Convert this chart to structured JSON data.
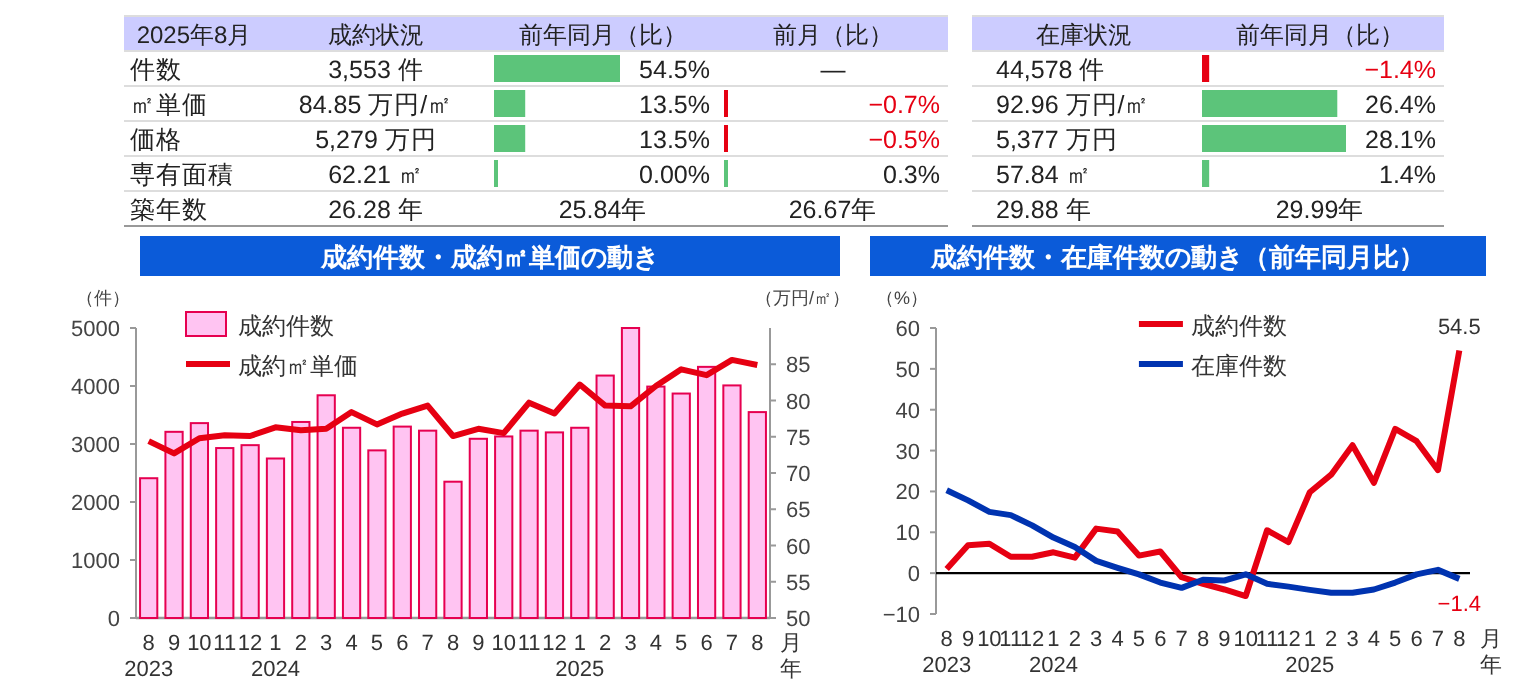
{
  "chart_data": [
    {
      "type": "other",
      "title": "2025年8月",
      "categories": [
        "件数",
        "㎡単価",
        "価格",
        "専有面積",
        "築年数"
      ],
      "series": [
        {
          "name": "成約状況",
          "values": [
            null,
            null,
            null,
            null,
            null
          ],
          "value_labels": [
            "3,553 件",
            "84.85 万円/㎡",
            "5,279 万円",
            "62.21 ㎡",
            "26.28 年"
          ]
        },
        {
          "name": "前年同月（比）",
          "values": [
            54.5,
            13.5,
            13.5,
            0.0,
            null
          ],
          "value_labels": [
            "54.5%",
            "13.5%",
            "13.5%",
            "0.00%",
            "25.84年"
          ]
        },
        {
          "name": "前月（比）",
          "values": [
            null,
            -0.7,
            -0.5,
            0.3,
            null
          ],
          "value_labels": [
            "—",
            "−0.7%",
            "−0.5%",
            "0.3%",
            "26.67年"
          ]
        }
      ]
    },
    {
      "type": "other",
      "title": "在庫状況",
      "categories": [
        "44,578 件",
        "92.96 万円/㎡",
        "5,377 万円",
        "57.84 ㎡",
        "29.88 年"
      ],
      "series": [
        {
          "name": "前年同月（比）",
          "values": [
            -1.4,
            26.4,
            28.1,
            1.4,
            null
          ],
          "value_labels": [
            "−1.4%",
            "26.4%",
            "28.1%",
            "1.4%",
            "29.99年"
          ]
        }
      ]
    },
    {
      "type": "bar",
      "title": "成約件数・成約㎡単価の動き",
      "ylabel": "（件）",
      "y2label": "（万円/㎡）",
      "xlabel": "月年",
      "categories": [
        "8\n2023",
        "9",
        "10",
        "11",
        "12",
        "1\n2024",
        "2",
        "3",
        "4",
        "5",
        "6",
        "7",
        "8",
        "9",
        "10",
        "11",
        "12",
        "1\n2025",
        "2",
        "3",
        "4",
        "5",
        "6",
        "7",
        "8"
      ],
      "ylim": [
        0,
        5000
      ],
      "yticks": [
        0,
        1000,
        2000,
        3000,
        4000,
        5000
      ],
      "y2lim": [
        50,
        90
      ],
      "y2ticks": [
        50,
        55,
        60,
        65,
        70,
        75,
        80,
        85
      ],
      "grid": false,
      "legend": "top left",
      "series": [
        {
          "name": "成約件数",
          "type": "bar",
          "color": "#ffc4f2",
          "values": [
            2410,
            3210,
            3360,
            2930,
            2980,
            2750,
            3380,
            3840,
            3280,
            2890,
            3300,
            3230,
            2350,
            3090,
            3130,
            3230,
            3200,
            3280,
            4180,
            5000,
            3990,
            3870,
            4330,
            4010,
            3550
          ]
        },
        {
          "name": "成約㎡単価",
          "type": "line",
          "axis": "y2",
          "color": "#e60012",
          "values": [
            74.4,
            72.7,
            74.8,
            75.2,
            75.1,
            76.3,
            75.9,
            76.1,
            78.4,
            76.7,
            78.2,
            79.3,
            75.1,
            76.1,
            75.5,
            79.7,
            78.2,
            82.2,
            79.3,
            79.2,
            82.0,
            84.3,
            83.5,
            85.6,
            84.9
          ]
        }
      ]
    },
    {
      "type": "line",
      "title": "成約件数・在庫件数の動き（前年同月比）",
      "ylabel": "（%）",
      "xlabel": "月年",
      "categories": [
        "8\n2023",
        "9",
        "10",
        "11",
        "12",
        "1\n2024",
        "2",
        "3",
        "4",
        "5",
        "6",
        "7",
        "8",
        "9",
        "10",
        "11",
        "12",
        "1\n2025",
        "2",
        "3",
        "4",
        "5",
        "6",
        "7",
        "8"
      ],
      "ylim": [
        -10,
        60
      ],
      "yticks": [
        -10,
        0,
        10,
        20,
        30,
        40,
        50,
        60
      ],
      "grid": false,
      "legend": "top",
      "marker": "none",
      "line_style": "solid",
      "series": [
        {
          "name": "成約件数",
          "color": "#e60012",
          "values": [
            1.0,
            6.8,
            7.2,
            4.0,
            4.0,
            5.1,
            3.8,
            10.9,
            10.2,
            4.3,
            5.3,
            -1.0,
            -2.6,
            -4.0,
            -5.6,
            10.5,
            7.6,
            19.8,
            24.1,
            31.3,
            22.1,
            35.3,
            32.3,
            25.2,
            54.5
          ],
          "value_labels": [
            null,
            null,
            null,
            null,
            null,
            null,
            null,
            null,
            null,
            null,
            null,
            null,
            null,
            null,
            null,
            null,
            null,
            null,
            null,
            null,
            null,
            null,
            null,
            null,
            "54.5"
          ]
        },
        {
          "name": "在庫件数",
          "color": "#0033b0",
          "values": [
            20.3,
            17.8,
            15.0,
            14.2,
            11.7,
            8.7,
            6.4,
            3.0,
            1.3,
            -0.3,
            -2.3,
            -3.6,
            -1.6,
            -1.8,
            -0.3,
            -2.6,
            -3.3,
            -4.1,
            -4.8,
            -4.8,
            -4.0,
            -2.3,
            -0.3,
            0.8,
            -1.4
          ],
          "value_labels": [
            null,
            null,
            null,
            null,
            null,
            null,
            null,
            null,
            null,
            null,
            null,
            null,
            null,
            null,
            null,
            null,
            null,
            null,
            null,
            null,
            null,
            null,
            null,
            null,
            "−1.4"
          ]
        }
      ]
    }
  ]
}
